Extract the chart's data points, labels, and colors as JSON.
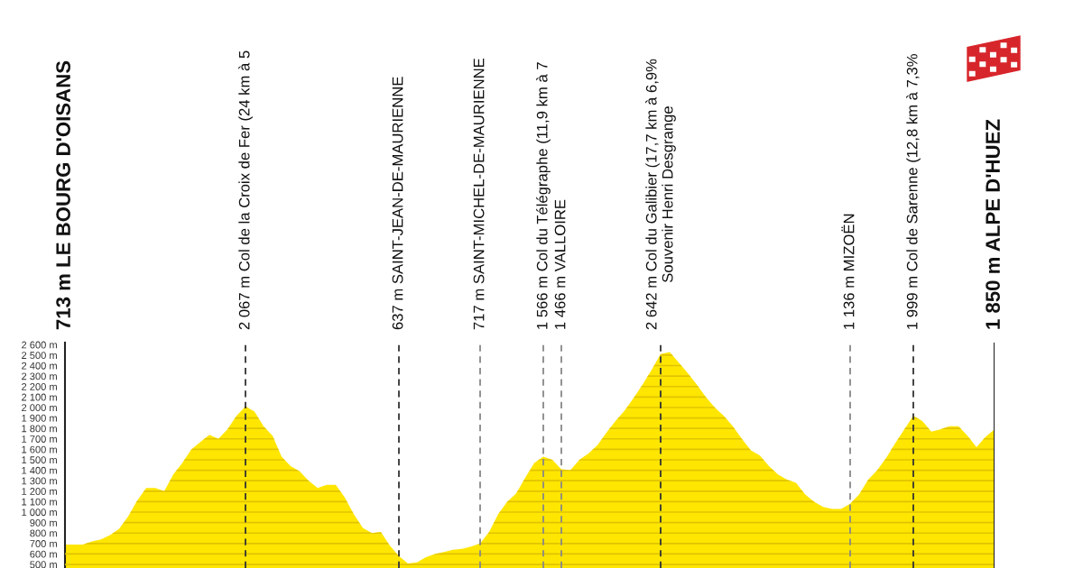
{
  "chart_data": {
    "type": "area",
    "categories": [
      "713 m LE BOURG D'OISANS",
      null,
      null,
      null,
      null,
      null,
      null,
      null,
      null,
      null,
      null,
      null,
      null,
      null,
      null,
      null,
      null,
      null,
      null,
      null,
      "2 067 m Col de la Croix de Fer (24 km à 5",
      null,
      null,
      null,
      null,
      null,
      null,
      null,
      null,
      null,
      null,
      null,
      null,
      null,
      null,
      null,
      null,
      "637 m SAINT-JEAN-DE-MAURIENNE",
      null,
      null,
      null,
      null,
      null,
      null,
      null,
      null,
      "717 m SAINT-MICHEL-DE-MAURIENNE",
      null,
      null,
      null,
      null,
      null,
      null,
      "1 566 m Col du Télégraphe (11,9 km à 7",
      null,
      "1 466 m VALLOIRE",
      null,
      null,
      null,
      null,
      null,
      null,
      null,
      null,
      null,
      null,
      "2 642 m Col du Galibier (17,7 km à 6,9%\nSouvenir Henri Desgrange",
      null,
      null,
      null,
      null,
      null,
      null,
      null,
      null,
      null,
      null,
      null,
      null,
      null,
      null,
      null,
      null,
      null,
      null,
      null,
      null,
      "1 136 m MIZOËN",
      null,
      null,
      null,
      null,
      null,
      null,
      "1 999 m Col de Sarenne (12,8 km à 7,3%",
      null,
      null,
      null,
      null,
      null,
      null,
      null,
      null,
      "1 850 m ALPE D'HUEZ"
    ],
    "values": [
      690,
      690,
      690,
      720,
      740,
      780,
      840,
      960,
      1110,
      1230,
      1230,
      1200,
      1360,
      1470,
      1600,
      1670,
      1740,
      1700,
      1790,
      1920,
      2010,
      1960,
      1820,
      1730,
      1530,
      1440,
      1390,
      1300,
      1230,
      1260,
      1260,
      1140,
      980,
      850,
      800,
      810,
      680,
      580,
      510,
      520,
      570,
      600,
      620,
      640,
      650,
      670,
      700,
      810,
      980,
      1100,
      1180,
      1330,
      1470,
      1530,
      1500,
      1410,
      1400,
      1500,
      1560,
      1640,
      1760,
      1870,
      1970,
      2090,
      2220,
      2360,
      2510,
      2530,
      2430,
      2330,
      2220,
      2100,
      2000,
      1920,
      1820,
      1700,
      1590,
      1540,
      1440,
      1360,
      1310,
      1280,
      1170,
      1100,
      1050,
      1030,
      1030,
      1080,
      1170,
      1310,
      1400,
      1520,
      1660,
      1790,
      1920,
      1870,
      1770,
      1790,
      1820,
      1820,
      1730,
      1620,
      1720,
      1790
    ],
    "color": "#ffe600",
    "ylim": [
      466,
      2620
    ],
    "yticks": [
      {
        "value": 500,
        "label": "500 m"
      },
      {
        "value": 600,
        "label": "600 m"
      },
      {
        "value": 700,
        "label": "700 m"
      },
      {
        "value": 800,
        "label": "800 m"
      },
      {
        "value": 900,
        "label": "900 m"
      },
      {
        "value": 1000,
        "label": "1 000 m"
      },
      {
        "value": 1100,
        "label": "1 100 m"
      },
      {
        "value": 1200,
        "label": "1 200 m"
      },
      {
        "value": 1300,
        "label": "1 300 m"
      },
      {
        "value": 1400,
        "label": "1 400 m"
      },
      {
        "value": 1500,
        "label": "1 500 m"
      },
      {
        "value": 1600,
        "label": "1 600 m"
      },
      {
        "value": 1700,
        "label": "1 700 m"
      },
      {
        "value": 1800,
        "label": "1 800 m"
      },
      {
        "value": 1900,
        "label": "1 900 m"
      },
      {
        "value": 2000,
        "label": "2 000 m"
      },
      {
        "value": 2100,
        "label": "2 100 m"
      },
      {
        "value": 2200,
        "label": "2 200 m"
      },
      {
        "value": 2300,
        "label": "2 300 m"
      },
      {
        "value": 2400,
        "label": "2 400 m"
      },
      {
        "value": 2500,
        "label": "2 500 m"
      },
      {
        "value": 2600,
        "label": "2 600 m"
      }
    ],
    "grid": "y",
    "ref_lines": [
      {
        "axis": "x",
        "value": "2 067 m Col de la Croix de Fer (24 km à 5",
        "color": "#333333",
        "line_style": "dashed"
      },
      {
        "axis": "x",
        "value": "637 m SAINT-JEAN-DE-MAURIENNE",
        "color": "#333333",
        "line_style": "dashed"
      },
      {
        "axis": "x",
        "value": "717 m SAINT-MICHEL-DE-MAURIENNE",
        "color": "#888888",
        "line_style": "dashed"
      },
      {
        "axis": "x",
        "value": "1 566 m Col du Télégraphe (11,9 km à 7",
        "color": "#888888",
        "line_style": "dashed"
      },
      {
        "axis": "x",
        "value": "1 466 m VALLOIRE",
        "color": "#888888",
        "line_style": "dashed"
      },
      {
        "axis": "x",
        "value": "2 642 m Col du Galibier (17,7 km à 6,9%\nSouvenir Henri Desgrange",
        "color": "#333333",
        "line_style": "dashed"
      },
      {
        "axis": "x",
        "value": "1 136 m MIZOËN",
        "color": "#888888",
        "line_style": "dashed"
      },
      {
        "axis": "x",
        "value": "1 999 m Col de Sarenne (12,8 km à 7,3%",
        "color": "#333333",
        "line_style": "dashed"
      },
      {
        "axis": "x",
        "value": "1 850 m ALPE D'HUEZ",
        "color": "#222222",
        "line_style": "solid"
      }
    ]
  }
}
